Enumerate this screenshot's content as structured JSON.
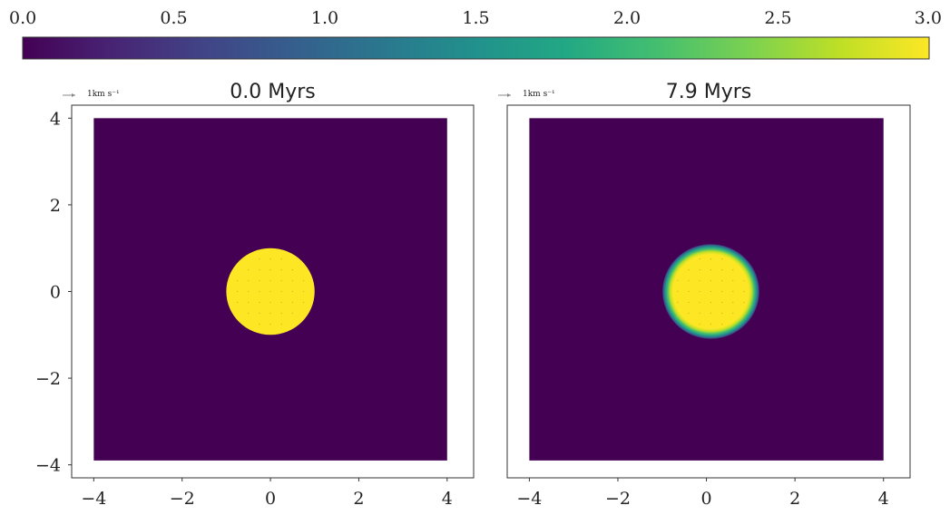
{
  "colors": {
    "viridis_low": "#440154",
    "viridis_high": "#fde725",
    "frame": "#333333",
    "quiver": "#888888"
  },
  "chart_data": [
    {
      "type": "heatmap",
      "role": "colorbar",
      "orientation": "horizontal",
      "placement": "top",
      "colormap": "viridis",
      "range": [
        0.0,
        3.0
      ],
      "ticks": [
        0.0,
        0.5,
        1.0,
        1.5,
        2.0,
        2.5,
        3.0
      ],
      "tick_labels": [
        "0.0",
        "0.5",
        "1.0",
        "1.5",
        "2.0",
        "2.5",
        "3.0"
      ]
    },
    {
      "type": "heatmap",
      "title": "0.0 Myrs",
      "colormap": "viridis",
      "xlim": [
        -4.5,
        4.6
      ],
      "ylim": [
        -4.3,
        4.3
      ],
      "grid_extent": {
        "x": [
          -4,
          4
        ],
        "y": [
          -3.9,
          4
        ]
      },
      "x_ticks": [
        -4,
        -2,
        0,
        2,
        4
      ],
      "x_tick_labels": [
        "−4",
        "−2",
        "0",
        "2",
        "4"
      ],
      "y_ticks": [
        -4,
        -2,
        0,
        2,
        4
      ],
      "y_tick_labels": [
        "−4",
        "−2",
        "0",
        "2",
        "4"
      ],
      "background_value": 0.0,
      "blob": {
        "center": [
          0,
          0
        ],
        "radius": 1.0,
        "value": 3.0,
        "edge": "sharp"
      },
      "quiver_key": {
        "label": "1km s⁻¹",
        "unit_speed": 1
      },
      "grid": false
    },
    {
      "type": "heatmap",
      "title": "7.9 Myrs",
      "colormap": "viridis",
      "xlim": [
        -4.5,
        4.6
      ],
      "ylim": [
        -4.3,
        4.3
      ],
      "grid_extent": {
        "x": [
          -4,
          4
        ],
        "y": [
          -3.9,
          4
        ]
      },
      "x_ticks": [
        -4,
        -2,
        0,
        2,
        4
      ],
      "x_tick_labels": [
        "−4",
        "−2",
        "0",
        "2",
        "4"
      ],
      "y_ticks": [],
      "y_tick_labels": [],
      "background_value": 0.0,
      "blob": {
        "center": [
          0.1,
          0
        ],
        "radius": 1.1,
        "value": 3.0,
        "edge": "smooth"
      },
      "quiver_key": {
        "label": "1km s⁻¹",
        "unit_speed": 1
      },
      "grid": false
    }
  ]
}
